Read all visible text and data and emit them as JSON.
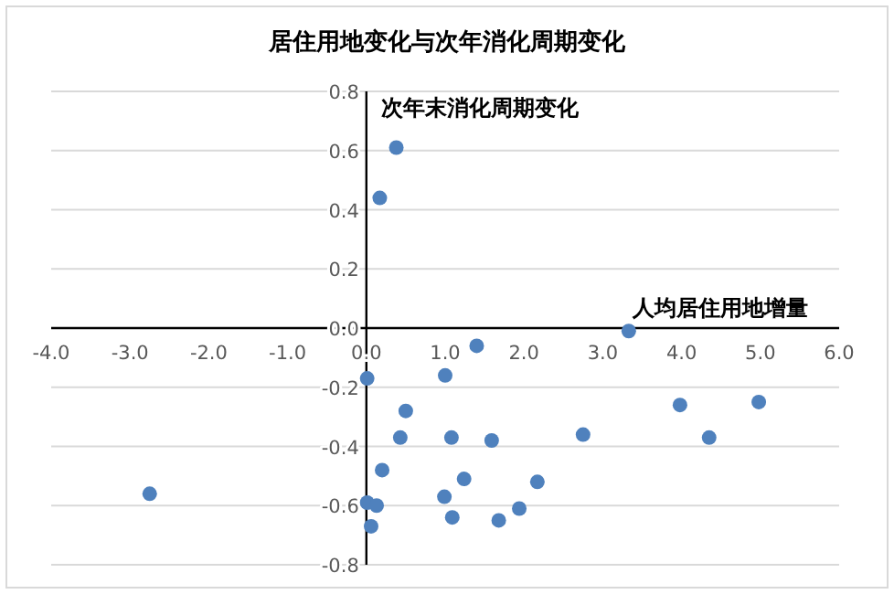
{
  "chart_data": {
    "type": "scatter",
    "title": "居住用地变化与次年消化周期变化",
    "xlabel": "人均居住用地增量",
    "ylabel": "次年末消化周期变化",
    "x": [
      0.38,
      0.17,
      3.33,
      1.4,
      1.0,
      0.01,
      0.5,
      0.43,
      1.08,
      1.59,
      2.75,
      3.98,
      4.98,
      4.35,
      0.2,
      1.24,
      2.17,
      -2.75,
      0.99,
      0.01,
      0.13,
      1.94,
      1.09,
      1.68,
      0.06
    ],
    "series": [
      {
        "color": "#4f81bd",
        "values": [
          0.61,
          0.44,
          -0.01,
          -0.06,
          -0.16,
          -0.17,
          -0.28,
          -0.37,
          -0.37,
          -0.38,
          -0.36,
          -0.26,
          -0.25,
          -0.37,
          -0.48,
          -0.51,
          -0.52,
          -0.56,
          -0.57,
          -0.59,
          -0.6,
          -0.61,
          -0.64,
          -0.65,
          -0.67
        ]
      }
    ],
    "xlim": [
      -4,
      6
    ],
    "ylim": [
      -0.8,
      0.8
    ],
    "xticks": [
      {
        "value": -4,
        "label": "-4.0"
      },
      {
        "value": -3,
        "label": "-3.0"
      },
      {
        "value": -2,
        "label": "-2.0"
      },
      {
        "value": -1,
        "label": "-1.0"
      },
      {
        "value": 0,
        "label": "0.0"
      },
      {
        "value": 1,
        "label": "1.0"
      },
      {
        "value": 2,
        "label": "2.0"
      },
      {
        "value": 3,
        "label": "3.0"
      },
      {
        "value": 4,
        "label": "4.0"
      },
      {
        "value": 5,
        "label": "5.0"
      },
      {
        "value": 6,
        "label": "6.0"
      }
    ],
    "yticks": [
      {
        "value": -0.8,
        "label": "-0.8"
      },
      {
        "value": -0.6,
        "label": "-0.6"
      },
      {
        "value": -0.4,
        "label": "-0.4"
      },
      {
        "value": -0.2,
        "label": "-0.2"
      },
      {
        "value": 0,
        "label": "0.0"
      },
      {
        "value": 0.2,
        "label": "0.2"
      },
      {
        "value": 0.4,
        "label": "0.4"
      },
      {
        "value": 0.6,
        "label": "0.6"
      },
      {
        "value": 0.8,
        "label": "0.8"
      }
    ],
    "grid": "y",
    "marker": "circle"
  }
}
